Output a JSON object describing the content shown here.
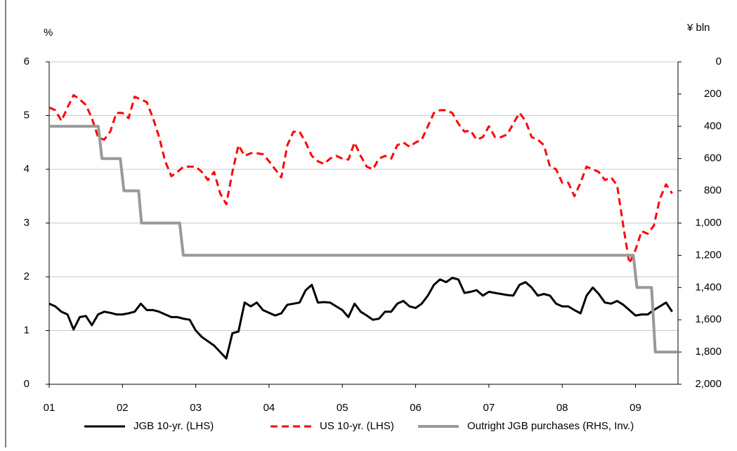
{
  "chart_data": {
    "type": "line",
    "y_label": "%",
    "y2_label": "¥ bln",
    "x": [
      2001,
      2001.083,
      2001.167,
      2001.25,
      2001.333,
      2001.417,
      2001.5,
      2001.583,
      2001.667,
      2001.75,
      2001.833,
      2001.917,
      2002,
      2002.083,
      2002.167,
      2002.25,
      2002.333,
      2002.417,
      2002.5,
      2002.583,
      2002.667,
      2002.75,
      2002.833,
      2002.917,
      2003,
      2003.083,
      2003.167,
      2003.25,
      2003.333,
      2003.417,
      2003.5,
      2003.583,
      2003.667,
      2003.75,
      2003.833,
      2003.917,
      2004,
      2004.083,
      2004.167,
      2004.25,
      2004.333,
      2004.417,
      2004.5,
      2004.583,
      2004.667,
      2004.75,
      2004.833,
      2004.917,
      2005,
      2005.083,
      2005.167,
      2005.25,
      2005.333,
      2005.417,
      2005.5,
      2005.583,
      2005.667,
      2005.75,
      2005.833,
      2005.917,
      2006,
      2006.083,
      2006.167,
      2006.25,
      2006.333,
      2006.417,
      2006.5,
      2006.583,
      2006.667,
      2006.75,
      2006.833,
      2006.917,
      2007,
      2007.083,
      2007.167,
      2007.25,
      2007.333,
      2007.417,
      2007.5,
      2007.583,
      2007.667,
      2007.75,
      2007.833,
      2007.917,
      2008,
      2008.083,
      2008.167,
      2008.25,
      2008.333,
      2008.417,
      2008.5,
      2008.583,
      2008.667,
      2008.75,
      2008.833,
      2008.917,
      2009,
      2009.083,
      2009.167,
      2009.25,
      2009.333,
      2009.417,
      2009.5
    ],
    "series": [
      {
        "name": "JGB 10-yr. (LHS)",
        "color": "#000000",
        "dash": "solid",
        "values": [
          1.5,
          1.45,
          1.35,
          1.3,
          1.02,
          1.25,
          1.27,
          1.1,
          1.3,
          1.35,
          1.33,
          1.3,
          1.3,
          1.32,
          1.35,
          1.5,
          1.38,
          1.38,
          1.35,
          1.3,
          1.25,
          1.25,
          1.22,
          1.2,
          1.0,
          0.88,
          0.8,
          0.72,
          0.6,
          0.48,
          0.95,
          0.98,
          1.52,
          1.45,
          1.52,
          1.38,
          1.33,
          1.28,
          1.32,
          1.48,
          1.5,
          1.52,
          1.75,
          1.85,
          1.52,
          1.53,
          1.52,
          1.45,
          1.38,
          1.25,
          1.5,
          1.35,
          1.28,
          1.2,
          1.22,
          1.35,
          1.35,
          1.5,
          1.55,
          1.45,
          1.42,
          1.5,
          1.65,
          1.85,
          1.95,
          1.9,
          1.98,
          1.95,
          1.7,
          1.72,
          1.75,
          1.65,
          1.72,
          1.7,
          1.68,
          1.66,
          1.65,
          1.85,
          1.9,
          1.8,
          1.65,
          1.68,
          1.65,
          1.5,
          1.45,
          1.45,
          1.38,
          1.32,
          1.65,
          1.8,
          1.68,
          1.52,
          1.5,
          1.55,
          1.48,
          1.38,
          1.28,
          1.3,
          1.3,
          1.38,
          1.45,
          1.52,
          1.35
        ]
      },
      {
        "name": "US 10-yr. (LHS)",
        "color": "#ff0000",
        "dash": "dashed",
        "values": [
          5.15,
          5.1,
          4.9,
          5.15,
          5.38,
          5.3,
          5.2,
          4.95,
          4.6,
          4.55,
          4.7,
          5.05,
          5.05,
          4.95,
          5.35,
          5.3,
          5.25,
          4.95,
          4.6,
          4.15,
          3.87,
          3.95,
          4.05,
          4.05,
          4.05,
          3.95,
          3.8,
          3.95,
          3.55,
          3.35,
          3.95,
          4.45,
          4.25,
          4.3,
          4.3,
          4.28,
          4.15,
          4.0,
          3.85,
          4.45,
          4.7,
          4.7,
          4.5,
          4.25,
          4.15,
          4.1,
          4.2,
          4.25,
          4.2,
          4.18,
          4.5,
          4.25,
          4.05,
          4.0,
          4.2,
          4.25,
          4.2,
          4.45,
          4.5,
          4.42,
          4.5,
          4.55,
          4.8,
          5.05,
          5.1,
          5.1,
          5.05,
          4.85,
          4.7,
          4.72,
          4.55,
          4.6,
          4.8,
          4.6,
          4.6,
          4.65,
          4.85,
          5.05,
          4.9,
          4.6,
          4.55,
          4.45,
          4.05,
          4.0,
          3.75,
          3.75,
          3.5,
          3.75,
          4.05,
          4.0,
          3.95,
          3.8,
          3.85,
          3.7,
          2.95,
          2.25,
          2.5,
          2.85,
          2.8,
          2.95,
          3.45,
          3.72,
          3.55
        ]
      },
      {
        "name": "Outright JGB purchases  (RHS, Inv.)",
        "color": "#999999",
        "dash": "solid",
        "axis": "y2",
        "x": [
          2001,
          2001.67,
          2001.72,
          2001.97,
          2002.02,
          2002.22,
          2002.26,
          2002.78,
          2002.83,
          2008.97,
          2009.02,
          2009.22,
          2009.27,
          2009.58
        ],
        "values": [
          400,
          400,
          600,
          600,
          800,
          800,
          1000,
          1000,
          1200,
          1200,
          1400,
          1400,
          1800,
          1800
        ]
      }
    ],
    "xlim": [
      2001,
      2009.58
    ],
    "xticks": [
      {
        "value": 2001,
        "label": "01"
      },
      {
        "value": 2002,
        "label": "02"
      },
      {
        "value": 2003,
        "label": "03"
      },
      {
        "value": 2004,
        "label": "04"
      },
      {
        "value": 2005,
        "label": "05"
      },
      {
        "value": 2006,
        "label": "06"
      },
      {
        "value": 2007,
        "label": "07"
      },
      {
        "value": 2008,
        "label": "08"
      },
      {
        "value": 2009,
        "label": "09"
      }
    ],
    "ylim": [
      0,
      6
    ],
    "yticks": [
      0,
      1,
      2,
      3,
      4,
      5,
      6
    ],
    "y2lim": [
      2000,
      0
    ],
    "y2ticks": [
      0,
      200,
      400,
      600,
      800,
      {
        "value": 1000,
        "label": "1,000"
      },
      {
        "value": 1200,
        "label": "1,200"
      },
      {
        "value": 1400,
        "label": "1,400"
      },
      {
        "value": 1600,
        "label": "1,600"
      },
      {
        "value": 1800,
        "label": "1,800"
      },
      {
        "value": 2000,
        "label": "2,000"
      }
    ],
    "grid": true,
    "legend": "bottom"
  }
}
